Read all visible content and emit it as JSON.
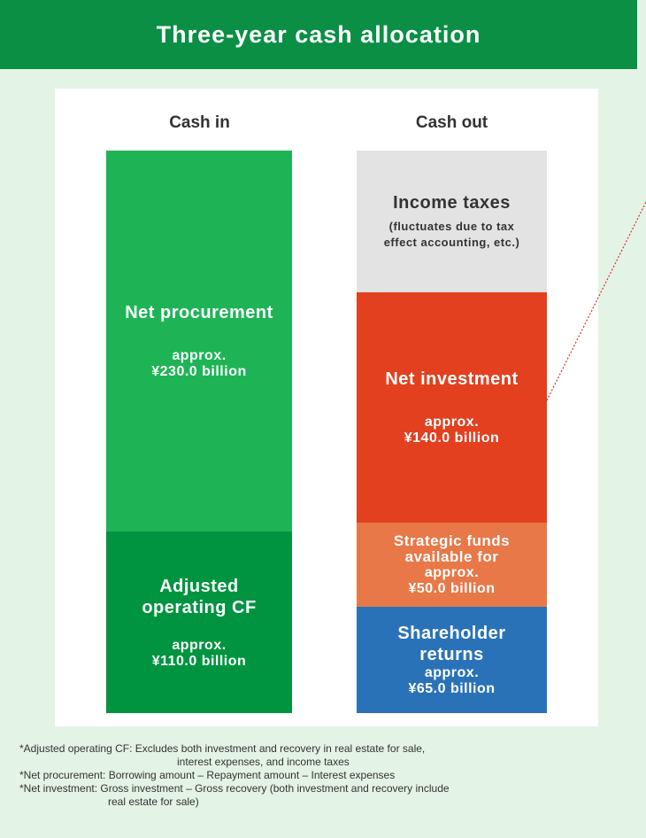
{
  "header": {
    "title": "Three-year cash allocation"
  },
  "columns": [
    {
      "header": "Cash in",
      "blocks": [
        {
          "label": [
            "Net procurement"
          ],
          "amount": [
            "approx.",
            "¥230.0 billion"
          ]
        },
        {
          "label": [
            "Adjusted",
            "operating CF"
          ],
          "amount": [
            "approx.",
            "¥110.0 billion"
          ]
        }
      ]
    },
    {
      "header": "Cash out",
      "blocks": [
        {
          "label": [
            "Income taxes"
          ],
          "amount": [
            "(fluctuates due to tax",
            "effect accounting, etc.)"
          ]
        },
        {
          "label": [
            "Net investment"
          ],
          "amount": [
            "approx.",
            "¥140.0 billion"
          ]
        },
        {
          "label": [
            "Strategic funds",
            "available for"
          ],
          "amount": [
            "approx.",
            "¥50.0 billion"
          ]
        },
        {
          "label": [
            "Shareholder",
            "returns"
          ],
          "amount": [
            "approx.",
            "¥65.0 billion"
          ]
        }
      ]
    }
  ],
  "footnotes": [
    [
      "*Adjusted operating CF: Excludes both investment and recovery in real estate for sale,",
      "interest expenses, and income taxes"
    ],
    [
      "*Net procurement: Borrowing amount – Repayment amount – Interest expenses"
    ],
    [
      "*Net investment: Gross investment – Gross recovery (both investment and recovery include",
      "real estate for sale)"
    ]
  ]
}
